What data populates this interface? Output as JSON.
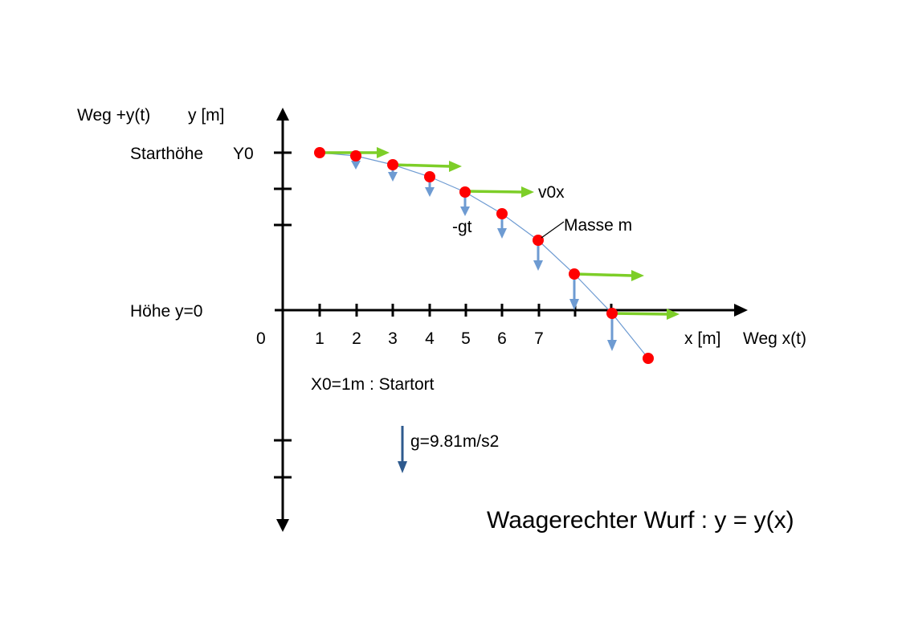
{
  "labels": {
    "y_axis_top": "Weg +y(t)",
    "y_unit": "y [m]",
    "start_height": "Starthöhe",
    "y0": "Y0",
    "height_zero": "Höhe  y=0",
    "origin": "0",
    "x_unit": "x [m]",
    "x_axis": "Weg x(t)",
    "v0x": "v0x",
    "gt": "-gt",
    "mass": "Masse m",
    "start_place": "X0=1m : Startort",
    "gravity": "g=9.81m/s2",
    "title": "Waagerechter Wurf : y = y(x)"
  },
  "x_ticks": [
    "1",
    "2",
    "3",
    "4",
    "5",
    "6",
    "7"
  ],
  "colors": {
    "axis": "#000000",
    "mass_point": "#ff0000",
    "velocity_arrow": "#7dce28",
    "gravity_component": "#6e9bd2",
    "gravity_arrow": "#2e5a8e",
    "trajectory": "#6e9bd2"
  }
}
